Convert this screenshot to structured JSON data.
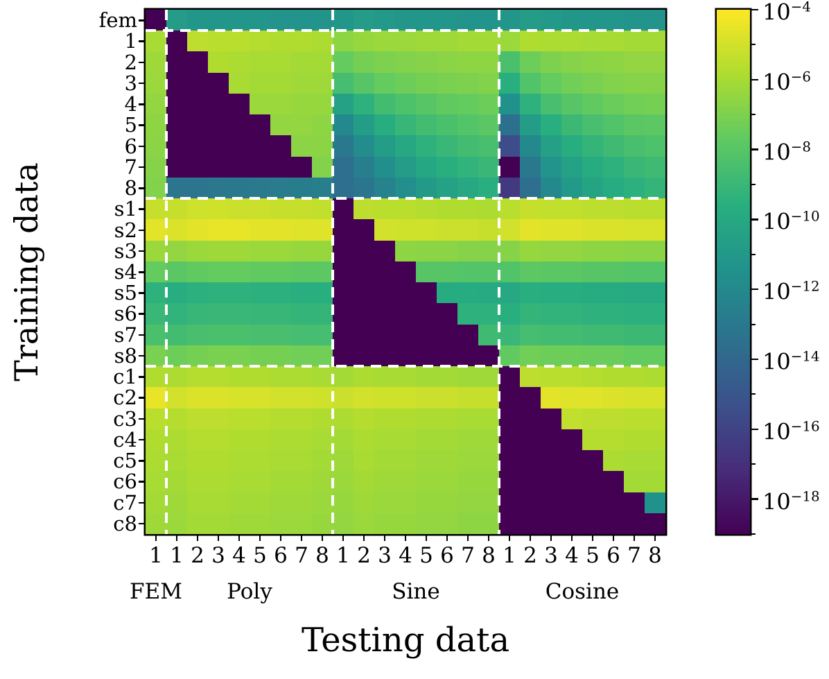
{
  "figure": {
    "x_axis_label": "Testing data",
    "y_axis_label": "Training data"
  },
  "chart_data": {
    "type": "heatmap",
    "colormap": "viridis",
    "scale": "log10",
    "vmin_log10": -19,
    "vmax_log10": -4,
    "xlabel": "Testing data",
    "ylabel": "Training data",
    "row_labels": [
      "fem",
      "1",
      "2",
      "3",
      "4",
      "5",
      "6",
      "7",
      "8",
      "s1",
      "s2",
      "s3",
      "s4",
      "s5",
      "s6",
      "s7",
      "s8",
      "c1",
      "c2",
      "c3",
      "c4",
      "c5",
      "c6",
      "c7",
      "c8"
    ],
    "col_labels": [
      "1",
      "1",
      "2",
      "3",
      "4",
      "5",
      "6",
      "7",
      "8",
      "1",
      "2",
      "3",
      "4",
      "5",
      "6",
      "7",
      "8",
      "1",
      "2",
      "3",
      "4",
      "5",
      "6",
      "7",
      "8"
    ],
    "col_groups": [
      {
        "label": "FEM",
        "start": 0,
        "span": 1
      },
      {
        "label": "Poly",
        "start": 1,
        "span": 8
      },
      {
        "label": "Sine",
        "start": 9,
        "span": 8
      },
      {
        "label": "Cosine",
        "start": 17,
        "span": 8
      }
    ],
    "separators": {
      "after_cols": [
        1,
        9,
        17
      ],
      "after_rows": [
        1,
        9,
        17
      ]
    },
    "values_log10": [
      [
        -19,
        -10.8,
        -11.1,
        -11.2,
        -11.2,
        -11.2,
        -11.3,
        -11.3,
        -11.3,
        -11.1,
        -10.8,
        -11.0,
        -11.1,
        -11.2,
        -11.2,
        -11.3,
        -11.3,
        -11.1,
        -10.8,
        -11.0,
        -11.1,
        -11.2,
        -11.2,
        -11.3,
        -11.3
      ],
      [
        -6.0,
        -19,
        -5.5,
        -5.6,
        -5.6,
        -5.7,
        -5.8,
        -5.8,
        -5.9,
        -6.6,
        -6.4,
        -6.3,
        -6.3,
        -6.2,
        -6.2,
        -6.1,
        -6.1,
        -6.3,
        -5.8,
        -5.9,
        -5.9,
        -6.0,
        -6.0,
        -6.1,
        -6.1
      ],
      [
        -6.2,
        -19,
        -19,
        -5.8,
        -5.9,
        -6.0,
        -6.0,
        -6.1,
        -6.1,
        -7.6,
        -7.2,
        -7.0,
        -6.9,
        -6.8,
        -6.7,
        -6.6,
        -6.6,
        -8.4,
        -7.4,
        -7.0,
        -6.8,
        -6.7,
        -6.6,
        -6.5,
        -6.5
      ],
      [
        -6.3,
        -19,
        -19,
        -19,
        -6.0,
        -6.1,
        -6.1,
        -6.2,
        -6.2,
        -8.6,
        -8.0,
        -7.6,
        -7.4,
        -7.2,
        -7.1,
        -7.0,
        -6.9,
        -9.6,
        -8.2,
        -7.6,
        -7.3,
        -7.1,
        -6.9,
        -6.8,
        -6.8
      ],
      [
        -6.5,
        -19,
        -19,
        -19,
        -19,
        -6.3,
        -6.3,
        -6.4,
        -6.4,
        -10.4,
        -9.4,
        -8.7,
        -8.3,
        -8.0,
        -7.7,
        -7.6,
        -7.4,
        -11.5,
        -9.4,
        -8.5,
        -8.0,
        -7.7,
        -7.5,
        -7.3,
        -7.2
      ],
      [
        -6.6,
        -19,
        -19,
        -19,
        -19,
        -19,
        -6.5,
        -6.5,
        -6.6,
        -12.0,
        -10.7,
        -9.7,
        -9.1,
        -8.7,
        -8.4,
        -8.1,
        -7.9,
        -13.5,
        -10.8,
        -9.6,
        -8.9,
        -8.5,
        -8.2,
        -7.9,
        -7.8
      ],
      [
        -6.7,
        -19,
        -19,
        -19,
        -19,
        -19,
        -19,
        -6.7,
        -6.7,
        -13.0,
        -11.8,
        -10.7,
        -10.0,
        -9.4,
        -9.0,
        -8.7,
        -8.5,
        -15.5,
        -12.0,
        -10.5,
        -9.7,
        -9.2,
        -8.8,
        -8.5,
        -8.3
      ],
      [
        -6.8,
        -19,
        -19,
        -19,
        -19,
        -19,
        -19,
        -19,
        -6.9,
        -13.6,
        -12.6,
        -11.6,
        -10.8,
        -10.1,
        -9.6,
        -9.3,
        -9.0,
        -19,
        -13.0,
        -11.3,
        -10.4,
        -9.8,
        -9.4,
        -9.0,
        -8.8
      ],
      [
        -6.9,
        -13.2,
        -13.2,
        -13.1,
        -13.0,
        -12.9,
        -12.8,
        -12.7,
        -12.6,
        -13.6,
        -13.2,
        -12.4,
        -11.6,
        -10.9,
        -10.4,
        -10.0,
        -9.6,
        -16.5,
        -13.6,
        -12.0,
        -11.0,
        -10.3,
        -9.8,
        -9.5,
        -9.2
      ],
      [
        -5.3,
        -5.3,
        -5.1,
        -5.1,
        -5.2,
        -5.2,
        -5.3,
        -5.3,
        -5.4,
        -19,
        -5.5,
        -5.6,
        -5.6,
        -5.7,
        -5.8,
        -5.8,
        -5.9,
        -5.6,
        -5.3,
        -5.4,
        -5.4,
        -5.5,
        -5.5,
        -5.6,
        -5.6
      ],
      [
        -4.6,
        -4.8,
        -4.6,
        -4.5,
        -4.5,
        -4.6,
        -4.6,
        -4.7,
        -4.7,
        -19,
        -19,
        -5.0,
        -5.1,
        -5.1,
        -5.2,
        -5.2,
        -5.3,
        -5.0,
        -4.6,
        -4.7,
        -4.7,
        -4.8,
        -4.8,
        -4.9,
        -4.9
      ],
      [
        -6.3,
        -6.5,
        -6.3,
        -6.2,
        -6.2,
        -6.3,
        -6.3,
        -6.4,
        -6.4,
        -19,
        -19,
        -19,
        -6.6,
        -6.7,
        -6.7,
        -6.8,
        -6.8,
        -6.8,
        -6.4,
        -6.5,
        -6.5,
        -6.6,
        -6.6,
        -6.7,
        -6.7
      ],
      [
        -7.6,
        -7.9,
        -7.7,
        -7.6,
        -7.6,
        -7.7,
        -7.7,
        -7.8,
        -7.8,
        -19,
        -19,
        -19,
        -19,
        -8.0,
        -8.0,
        -8.1,
        -8.1,
        -8.2,
        -7.8,
        -7.9,
        -7.9,
        -8.0,
        -8.0,
        -8.1,
        -8.1
      ],
      [
        -9.4,
        -9.7,
        -9.5,
        -9.4,
        -9.4,
        -9.5,
        -9.5,
        -9.6,
        -9.6,
        -19,
        -19,
        -19,
        -19,
        -19,
        -9.8,
        -9.8,
        -9.9,
        -10.0,
        -9.6,
        -9.7,
        -9.7,
        -9.8,
        -9.8,
        -9.9,
        -9.9
      ],
      [
        -9.0,
        -9.3,
        -9.1,
        -9.0,
        -9.0,
        -9.1,
        -9.1,
        -9.2,
        -9.2,
        -19,
        -19,
        -19,
        -19,
        -19,
        -19,
        -9.4,
        -9.4,
        -9.6,
        -9.2,
        -9.3,
        -9.3,
        -9.4,
        -9.4,
        -9.5,
        -9.5
      ],
      [
        -8.4,
        -8.7,
        -8.5,
        -8.4,
        -8.4,
        -8.5,
        -8.5,
        -8.6,
        -8.6,
        -19,
        -19,
        -19,
        -19,
        -19,
        -19,
        -19,
        -8.8,
        -9.0,
        -8.6,
        -8.7,
        -8.7,
        -8.8,
        -8.8,
        -8.9,
        -8.9
      ],
      [
        -7.1,
        -7.4,
        -7.2,
        -7.1,
        -7.1,
        -7.2,
        -7.2,
        -7.3,
        -7.3,
        -19,
        -19,
        -19,
        -19,
        -19,
        -19,
        -19,
        -19,
        -7.7,
        -7.3,
        -7.4,
        -7.4,
        -7.5,
        -7.5,
        -7.6,
        -7.6
      ],
      [
        -5.8,
        -5.9,
        -5.7,
        -5.7,
        -5.8,
        -5.8,
        -5.9,
        -5.9,
        -6.0,
        -6.1,
        -5.9,
        -6.0,
        -6.0,
        -6.1,
        -6.1,
        -6.2,
        -6.2,
        -19,
        -5.5,
        -5.6,
        -5.6,
        -5.7,
        -5.8,
        -5.8,
        -5.9
      ],
      [
        -4.5,
        -5.0,
        -4.8,
        -4.8,
        -4.9,
        -4.9,
        -5.0,
        -5.0,
        -5.1,
        -5.2,
        -5.0,
        -5.1,
        -5.1,
        -5.2,
        -5.2,
        -5.3,
        -5.3,
        -19,
        -19,
        -4.6,
        -4.7,
        -4.7,
        -4.8,
        -4.9,
        -4.9
      ],
      [
        -5.6,
        -5.7,
        -5.5,
        -5.5,
        -5.6,
        -5.6,
        -5.7,
        -5.7,
        -5.8,
        -5.9,
        -5.7,
        -5.8,
        -5.8,
        -5.9,
        -5.9,
        -6.0,
        -6.0,
        -19,
        -19,
        -19,
        -5.4,
        -5.5,
        -5.5,
        -5.6,
        -5.6
      ],
      [
        -5.8,
        -5.9,
        -5.7,
        -5.7,
        -5.8,
        -5.8,
        -5.9,
        -5.9,
        -6.0,
        -6.1,
        -5.9,
        -6.0,
        -6.0,
        -6.1,
        -6.1,
        -6.2,
        -6.2,
        -19,
        -19,
        -19,
        -19,
        -5.7,
        -5.7,
        -5.8,
        -5.8
      ],
      [
        -5.9,
        -6.0,
        -5.8,
        -5.8,
        -5.9,
        -5.9,
        -6.0,
        -6.0,
        -6.1,
        -6.2,
        -6.0,
        -6.1,
        -6.1,
        -6.2,
        -6.2,
        -6.3,
        -6.3,
        -19,
        -19,
        -19,
        -19,
        -19,
        -5.9,
        -6.0,
        -6.0
      ],
      [
        -6.0,
        -6.1,
        -5.9,
        -5.9,
        -6.0,
        -6.0,
        -6.1,
        -6.1,
        -6.2,
        -6.3,
        -6.1,
        -6.2,
        -6.2,
        -6.3,
        -6.3,
        -6.4,
        -6.4,
        -19,
        -19,
        -19,
        -19,
        -19,
        -19,
        -6.1,
        -6.1
      ],
      [
        -6.1,
        -6.2,
        -6.0,
        -6.0,
        -6.1,
        -6.1,
        -6.2,
        -6.2,
        -6.3,
        -6.4,
        -6.2,
        -6.3,
        -6.3,
        -6.4,
        -6.4,
        -6.5,
        -6.5,
        -19,
        -19,
        -19,
        -19,
        -19,
        -19,
        -19,
        -11.5
      ],
      [
        -6.2,
        -6.3,
        -6.1,
        -6.1,
        -6.2,
        -6.2,
        -6.3,
        -6.3,
        -6.4,
        -6.5,
        -6.3,
        -6.4,
        -6.4,
        -6.5,
        -6.5,
        -6.6,
        -6.6,
        -19,
        -19,
        -19,
        -19,
        -19,
        -19,
        -19,
        -19
      ]
    ],
    "colorbar": {
      "scale_base": "10",
      "major_tick_exponents": [
        "−4",
        "−6",
        "−8",
        "−10",
        "−12",
        "−14",
        "−16",
        "−18"
      ],
      "major_tick_values": [
        -4,
        -6,
        -8,
        -10,
        -12,
        -14,
        -16,
        -18
      ],
      "minor_tick_values": [
        -5,
        -7,
        -9,
        -11,
        -13,
        -15,
        -17,
        -19
      ]
    }
  }
}
